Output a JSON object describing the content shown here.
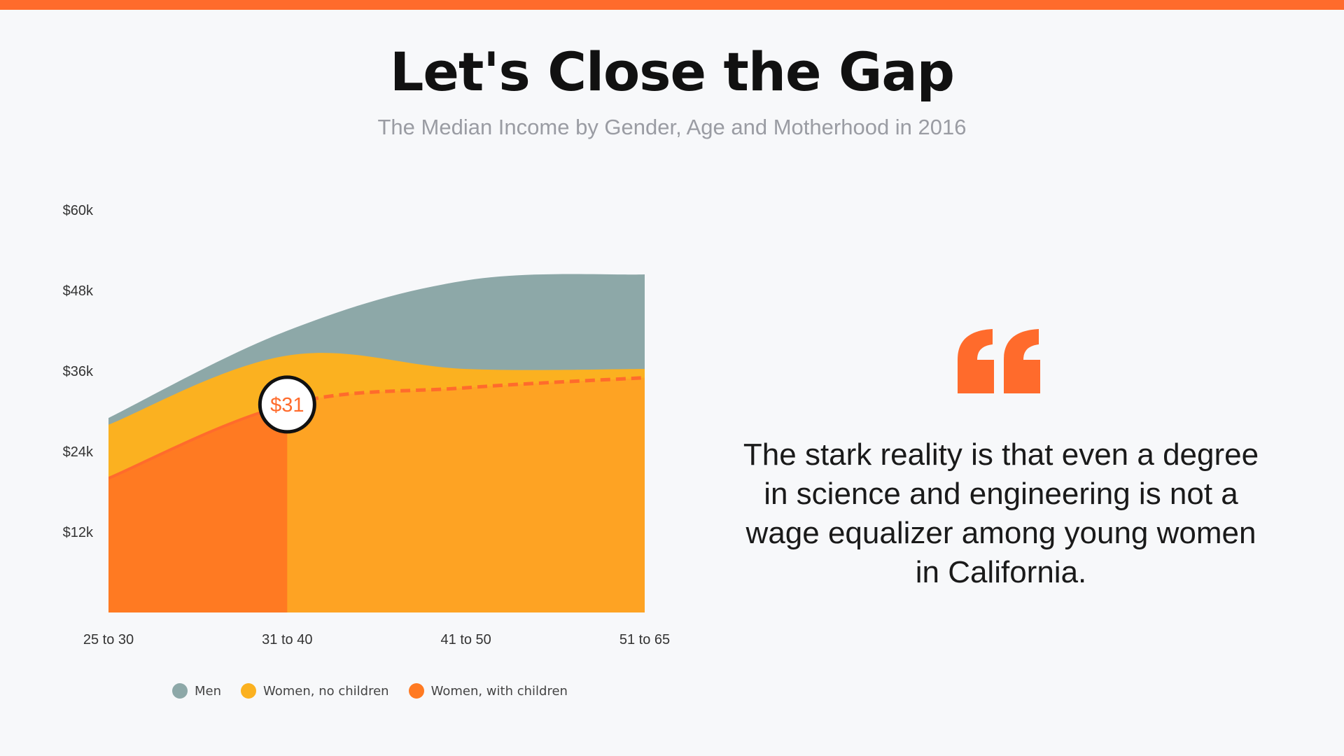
{
  "header": {
    "title": "Let's Close the Gap",
    "subtitle": "The Median Income by Gender, Age and Motherhood in 2016"
  },
  "colors": {
    "accent": "#ff6b2c",
    "men": "#8da8a8",
    "women_no_children": "#fbb120",
    "women_with_children": "#ff7a22",
    "women_with_children_fill_right": "#fea323"
  },
  "chart_data": {
    "type": "area",
    "title": "The Median Income by Gender, Age and Motherhood in 2016",
    "categories": [
      "25 to 30",
      "31 to 40",
      "41 to 50",
      "51 to 65"
    ],
    "y_tick_labels": [
      "$12k",
      "$24k",
      "$36k",
      "$48k",
      "$60k"
    ],
    "y_ticks": [
      12,
      24,
      36,
      48,
      60
    ],
    "ylim": [
      0,
      60
    ],
    "y_unit": "thousand USD",
    "series": [
      {
        "name": "Men",
        "values": [
          29,
          42,
          49.5,
          50.4
        ]
      },
      {
        "name": "Women, no children",
        "values": [
          28,
          38.3,
          36.3,
          36.3
        ]
      },
      {
        "name": "Women, with children",
        "values": [
          20,
          31,
          33.5,
          35
        ]
      }
    ],
    "highlight": {
      "category": "31 to 40",
      "series": "Women, with children",
      "label": "$31"
    },
    "legend_position": "bottom"
  },
  "quote": {
    "icon": "quote-icon",
    "text": "The stark reality is that even a degree in science and engineering is not a wage equalizer among young women in California."
  }
}
